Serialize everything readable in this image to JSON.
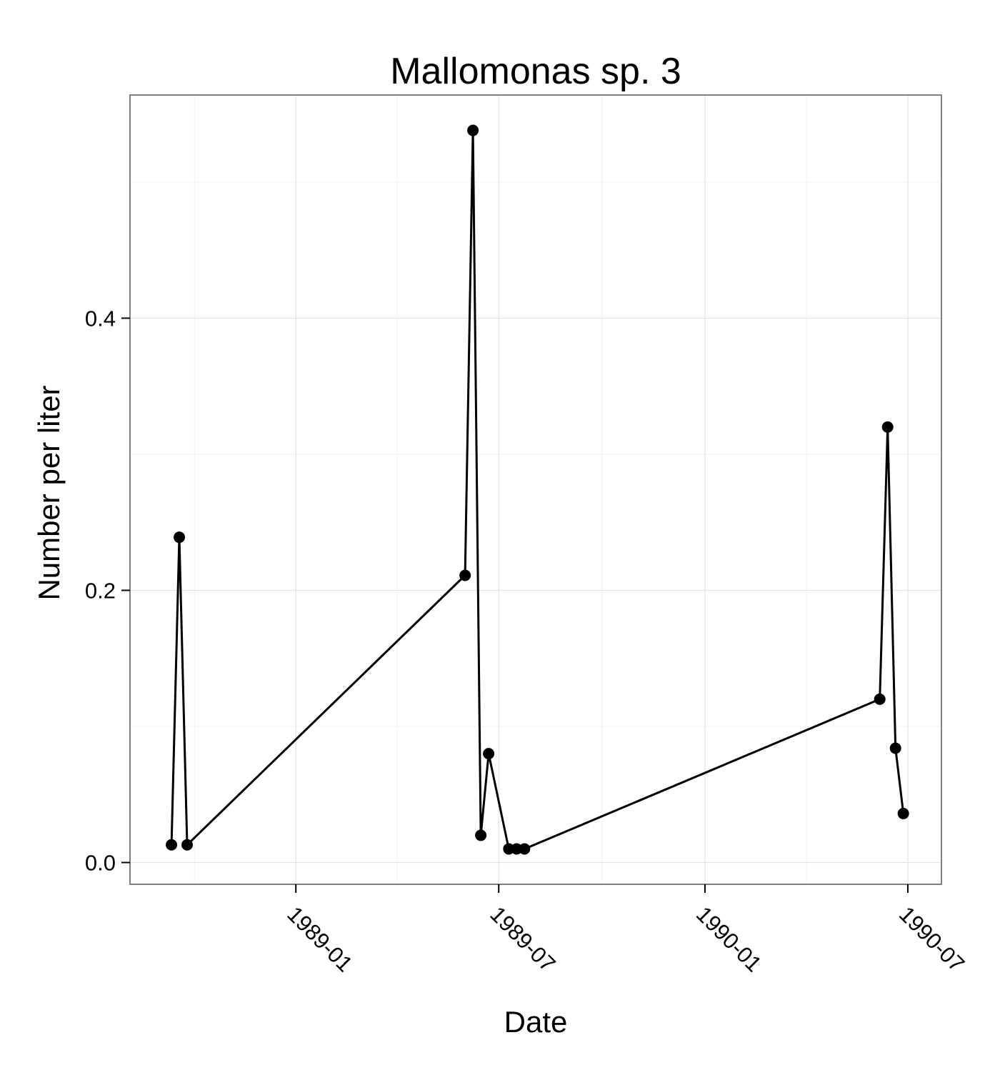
{
  "chart_data": {
    "type": "line",
    "title": "Mallomonas sp. 3",
    "xlabel": "Date",
    "ylabel": "Number per liter",
    "x_ticks": [
      "1989-01",
      "1989-07",
      "1990-01",
      "1990-07"
    ],
    "y_ticks": [
      "0.0",
      "0.2",
      "0.4"
    ],
    "xlim": [
      "1988-08-06",
      "1990-07-31"
    ],
    "ylim": [
      -0.016,
      0.564
    ],
    "grid": true,
    "series": [
      {
        "color": "#000000",
        "points": [
          {
            "x": "1988-09-12",
            "y": 0.013
          },
          {
            "x": "1988-09-19",
            "y": 0.239
          },
          {
            "x": "1988-09-26",
            "y": 0.013
          },
          {
            "x": "1989-06-01",
            "y": 0.211
          },
          {
            "x": "1989-06-08",
            "y": 0.538
          },
          {
            "x": "1989-06-15",
            "y": 0.02
          },
          {
            "x": "1989-06-22",
            "y": 0.08
          },
          {
            "x": "1989-07-10",
            "y": 0.01
          },
          {
            "x": "1989-07-17",
            "y": 0.01
          },
          {
            "x": "1989-07-24",
            "y": 0.01
          },
          {
            "x": "1990-06-06",
            "y": 0.12
          },
          {
            "x": "1990-06-13",
            "y": 0.32
          },
          {
            "x": "1990-06-20",
            "y": 0.084
          },
          {
            "x": "1990-06-27",
            "y": 0.036
          }
        ]
      }
    ]
  }
}
